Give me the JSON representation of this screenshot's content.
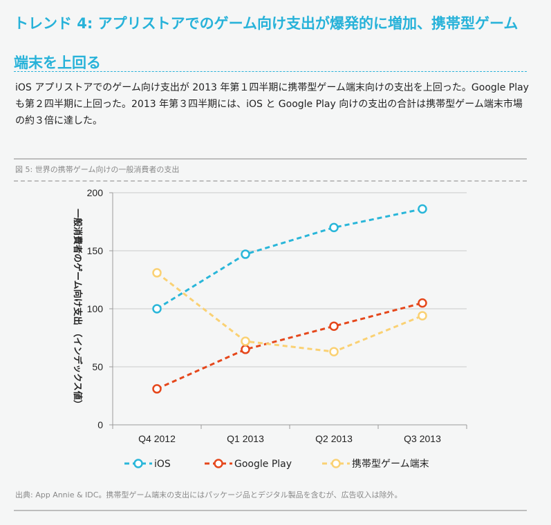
{
  "heading": "トレンド 4: アプリストアでのゲーム向け支出が爆発的に増加、携帯型ゲーム端末を上回る",
  "body": "iOS アプリストアでのゲーム向け支出が 2013 年第１四半期に携帯型ゲーム端末向けの支出を上回った。Google Play も第２四半期に上回った。2013 年第３四半期には、iOS と Google Play 向けの支出の合計は携帯型ゲーム端末市場の約３倍に達した。",
  "figure_caption": "図 5: 世界の携帯ゲーム向けの一般消費者の支出",
  "source_note": "出典: App Annie & IDC。携帯型ゲーム端末の支出にはパッケージ品とデジタル製品を含むが、広告収入は除外。",
  "chart_data": {
    "type": "line",
    "title": "",
    "xlabel": "",
    "ylabel": "一般消費者のゲーム向け支出 （インデックス値）",
    "categories": [
      "Q4 2012",
      "Q1 2013",
      "Q2 2013",
      "Q3 2013"
    ],
    "ylim": [
      0,
      200
    ],
    "yticks": [
      0,
      50,
      100,
      150,
      200
    ],
    "grid": true,
    "legend_position": "bottom",
    "series": [
      {
        "name": "iOS",
        "values": [
          100,
          147,
          170,
          186
        ],
        "color": "#29b6d9",
        "line_style": "dashed",
        "marker": "open-circle"
      },
      {
        "name": "Google Play",
        "values": [
          31,
          65,
          85,
          105
        ],
        "color": "#e5471b",
        "line_style": "dashed",
        "marker": "open-circle"
      },
      {
        "name": "携帯型ゲーム端末",
        "values": [
          131,
          72,
          63,
          94
        ],
        "color": "#fad173",
        "line_style": "dashed",
        "marker": "open-circle"
      }
    ]
  },
  "colors": {
    "accent": "#27b2d9",
    "rule": "#bdbdbd",
    "caption": "#888888"
  }
}
